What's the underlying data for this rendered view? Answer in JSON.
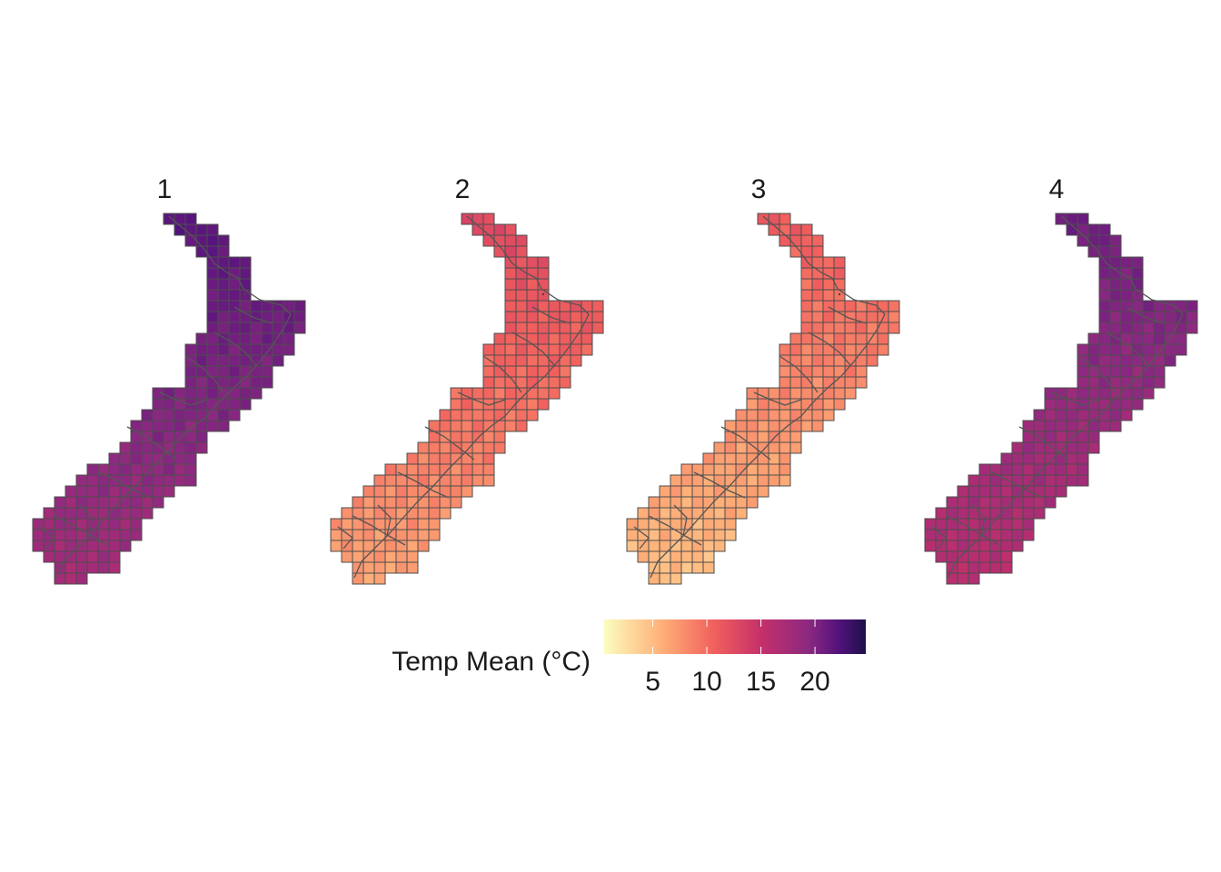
{
  "panels": [
    {
      "label": "1",
      "level": 0.76
    },
    {
      "label": "2",
      "level": 0.36
    },
    {
      "label": "3",
      "level": 0.3
    },
    {
      "label": "4",
      "level": 0.7
    }
  ],
  "legend": {
    "title": "Temp Mean (°C)",
    "ticks": [
      "5",
      "10",
      "15",
      "20"
    ],
    "tick_values": [
      5,
      10,
      15,
      20
    ],
    "range": [
      0.5,
      24.7
    ],
    "palette": "magma",
    "colors": [
      "#fcfdbf",
      "#feb078",
      "#f1605d",
      "#c5306a",
      "#8c2981",
      "#51127c",
      "#1d1147"
    ]
  }
}
